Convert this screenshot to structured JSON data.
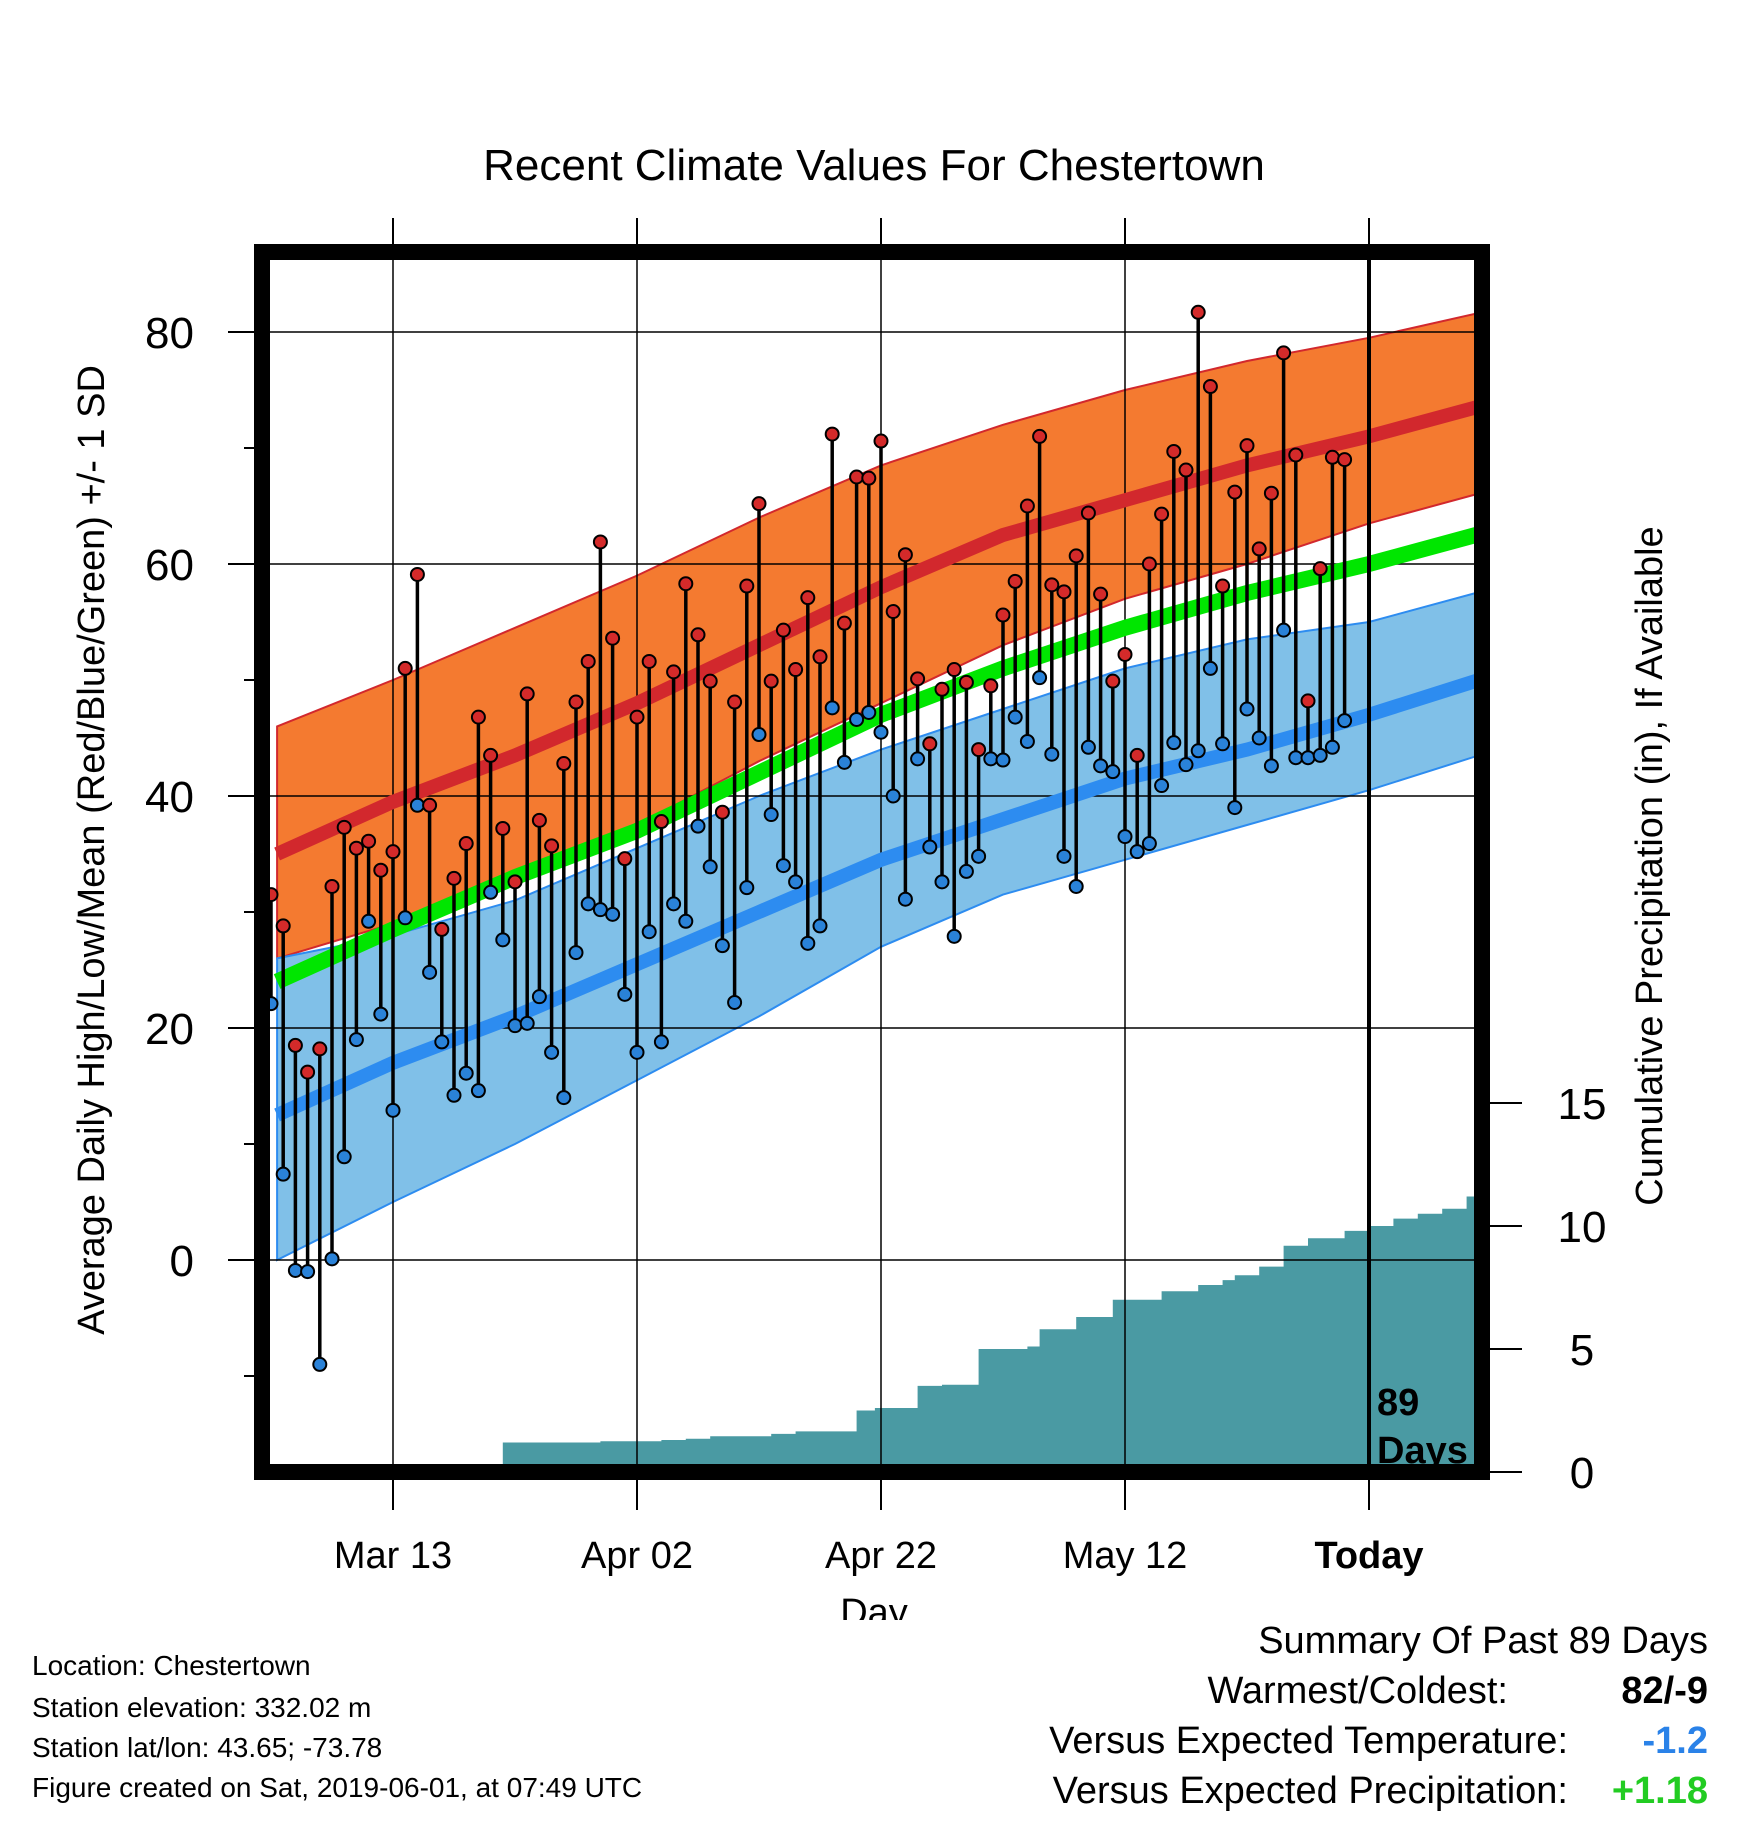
{
  "chart_data": {
    "type": "line",
    "title": "Recent Climate Values For Chestertown",
    "xlabel": "Day",
    "ylabel": "Average Daily High/Low/Mean (Red/Blue/Green) +/- 1 SD",
    "y2label": "Cumulative Precipitation (in), If Available",
    "ylim": [
      -18,
      88
    ],
    "y2lim": [
      0,
      20
    ],
    "yticks": [
      0,
      20,
      40,
      60,
      80
    ],
    "y2ticks": [
      0,
      5,
      10,
      15
    ],
    "xlim": [
      -9.5,
      90.5
    ],
    "xticks": [
      {
        "day": 0,
        "label": "Mar 13"
      },
      {
        "day": 20,
        "label": "Apr 02"
      },
      {
        "day": 40,
        "label": "Apr 22"
      },
      {
        "day": 60,
        "label": "May 12"
      },
      {
        "day": 80,
        "label": "Today"
      }
    ],
    "today_day": 80,
    "today_label": [
      "89",
      "Days"
    ],
    "grid": true,
    "colors": {
      "high_band": "#f47a30",
      "high_mean": "#d2282d",
      "low_band": "#80c0e8",
      "low_mean": "#2d8cf0",
      "mean": "#00e600",
      "precip": "#4a9aa3",
      "high_dot": "#d42a2a",
      "low_dot": "#2a82d8"
    },
    "normals": {
      "days": [
        -9.5,
        0,
        10,
        20,
        30,
        40,
        50,
        60,
        70,
        80,
        90.5
      ],
      "high_mean": [
        35,
        39.5,
        43.5,
        48,
        53,
        58,
        62.5,
        65.5,
        68.5,
        71,
        74
      ],
      "high_upper": [
        46,
        50,
        54.5,
        59,
        64,
        68.5,
        72,
        75,
        77.5,
        79.5,
        82
      ],
      "high_lower": [
        26,
        29,
        33,
        37.5,
        43,
        48,
        53,
        57,
        60,
        63.5,
        66.5
      ],
      "low_mean": [
        12.5,
        17,
        21,
        25.5,
        30,
        34.5,
        38,
        41.5,
        44,
        47,
        50.5
      ],
      "low_upper": [
        26,
        28,
        31,
        35.5,
        40,
        44,
        47.5,
        51,
        53.5,
        55,
        58
      ],
      "low_lower": [
        0,
        5,
        10,
        15.5,
        21,
        27,
        31.5,
        34.5,
        37.5,
        40.5,
        44
      ],
      "mean": [
        24,
        28.5,
        33,
        37,
        42,
        47,
        51,
        54.5,
        57.5,
        60,
        63
      ]
    },
    "daily": {
      "start_day": -10,
      "high": [
        31.5,
        28.8,
        18.5,
        16.2,
        18.2,
        32.2,
        37.3,
        35.5,
        36.1,
        33.6,
        35.2,
        51.0,
        59.1,
        39.2,
        28.5,
        32.9,
        35.9,
        46.8,
        43.5,
        37.2,
        32.6,
        48.8,
        37.9,
        35.7,
        42.8,
        48.1,
        51.6,
        61.9,
        53.6,
        34.6,
        46.8,
        51.6,
        37.8,
        50.7,
        58.3,
        53.9,
        49.9,
        38.6,
        48.1,
        58.1,
        65.2,
        49.9,
        54.3,
        50.9,
        57.1,
        52.0,
        71.2,
        54.9,
        67.5,
        67.4,
        70.6,
        55.9,
        60.8,
        50.1,
        44.5,
        49.2,
        50.9,
        49.8,
        44.0,
        49.5,
        55.6,
        58.5,
        65.0,
        71.0,
        58.2,
        57.6,
        60.7,
        64.4,
        57.4,
        49.9,
        52.2,
        43.5,
        60.0,
        64.3,
        69.7,
        68.1,
        81.7,
        75.3,
        58.1,
        66.2,
        70.2,
        61.3,
        66.1,
        78.2,
        69.4,
        48.2,
        59.6,
        69.2,
        69.0
      ],
      "low": [
        22.1,
        7.4,
        -0.9,
        -1.0,
        -9.0,
        0.1,
        8.9,
        19.0,
        29.2,
        21.2,
        12.9,
        29.5,
        39.2,
        24.8,
        18.8,
        14.2,
        16.1,
        14.6,
        31.7,
        27.6,
        20.2,
        20.4,
        22.7,
        17.9,
        14.0,
        26.5,
        30.7,
        30.2,
        29.8,
        22.9,
        17.9,
        28.3,
        18.8,
        30.7,
        29.2,
        37.4,
        33.9,
        27.1,
        22.2,
        32.1,
        45.3,
        38.4,
        34.0,
        32.6,
        27.3,
        28.8,
        47.6,
        42.9,
        46.6,
        47.2,
        45.5,
        40.0,
        31.1,
        43.2,
        35.6,
        32.6,
        27.9,
        33.5,
        34.8,
        43.2,
        43.1,
        46.8,
        44.7,
        50.2,
        43.6,
        34.8,
        32.2,
        44.2,
        42.6,
        42.1,
        36.5,
        35.2,
        35.9,
        40.9,
        44.6,
        42.7,
        43.9,
        51.0,
        44.5,
        39.0,
        47.5,
        45.0,
        42.6,
        54.3,
        43.3,
        43.3,
        43.5,
        44.2,
        46.5
      ]
    },
    "precip": {
      "days": [
        -9.5,
        -2.3,
        2,
        8,
        9,
        17,
        22,
        24,
        26,
        31,
        33,
        38,
        39.5,
        43,
        45,
        48,
        52,
        53,
        56,
        59,
        63,
        66,
        68,
        69,
        71,
        73,
        75,
        78,
        80,
        82,
        84,
        86,
        88,
        90.5
      ],
      "cum": [
        0,
        0.05,
        0.2,
        0.3,
        1.2,
        1.25,
        1.3,
        1.35,
        1.45,
        1.55,
        1.65,
        2.5,
        2.6,
        3.5,
        3.55,
        5.0,
        5.1,
        5.8,
        6.3,
        7.0,
        7.35,
        7.6,
        7.8,
        8.0,
        8.35,
        9.2,
        9.5,
        9.8,
        10.0,
        10.3,
        10.5,
        10.7,
        11.2,
        11.25
      ]
    }
  },
  "footer": {
    "location": "Location: Chestertown",
    "elevation": "Station elevation: 332.02 m",
    "latlon": "Station lat/lon: 43.65; -73.78",
    "created": "Figure created on Sat, 2019-06-01, at 07:49 UTC"
  },
  "summary": {
    "title": "Summary Of Past 89 Days",
    "warmest_coldest_label": "Warmest/Coldest:",
    "warmest_coldest_value": "82/-9",
    "temp_label": "Versus Expected Temperature:",
    "temp_value": "-1.2",
    "temp_color": "#2a82e8",
    "precip_label": "Versus Expected Precipitation:",
    "precip_value": "+1.18",
    "precip_color": "#22cc22"
  }
}
